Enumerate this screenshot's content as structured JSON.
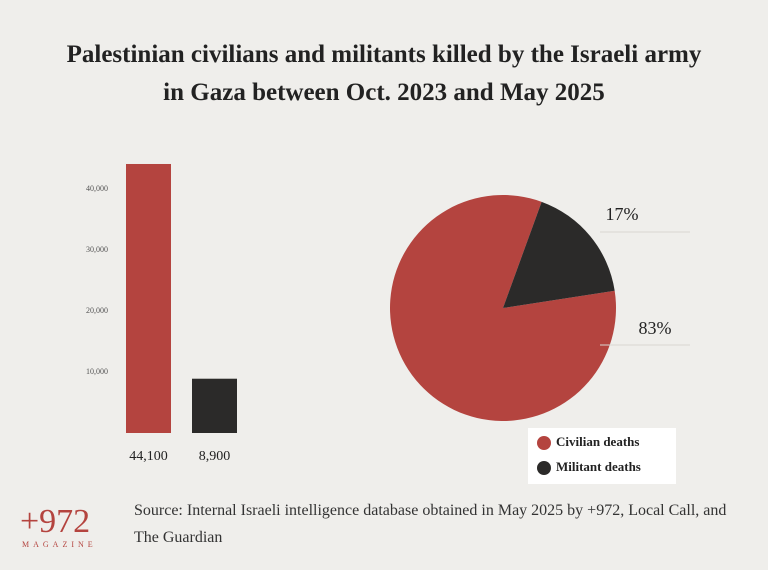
{
  "title": "Palestinian civilians and militants killed by the Israeli army in Gaza between Oct. 2023 and May 2025",
  "chart_data": [
    {
      "type": "bar",
      "categories": [
        null,
        null
      ],
      "values": [
        44100,
        8900
      ],
      "value_labels": [
        "44,100",
        "8,900"
      ],
      "colors": [
        "#b4443f",
        "#2b2a29"
      ],
      "ylim": [
        0,
        45000
      ],
      "yticks": [
        {
          "value": 10000,
          "label": "10,000"
        },
        {
          "value": 20000,
          "label": "20,000"
        },
        {
          "value": 30000,
          "label": "30,000"
        },
        {
          "value": 40000,
          "label": "40,000"
        }
      ]
    },
    {
      "type": "pie",
      "categories": [
        "Civilian deaths",
        "Militant deaths"
      ],
      "values": [
        83,
        17
      ],
      "value_labels": [
        "83%",
        "17%"
      ],
      "colors": [
        "#b4443f",
        "#2b2a29"
      ]
    }
  ],
  "source": "Source: Internal Israeli intelligence database obtained in May 2025 by +972, Local Call, and The Guardian",
  "logo": {
    "name": "+972",
    "subtitle": "MAGAZINE"
  }
}
